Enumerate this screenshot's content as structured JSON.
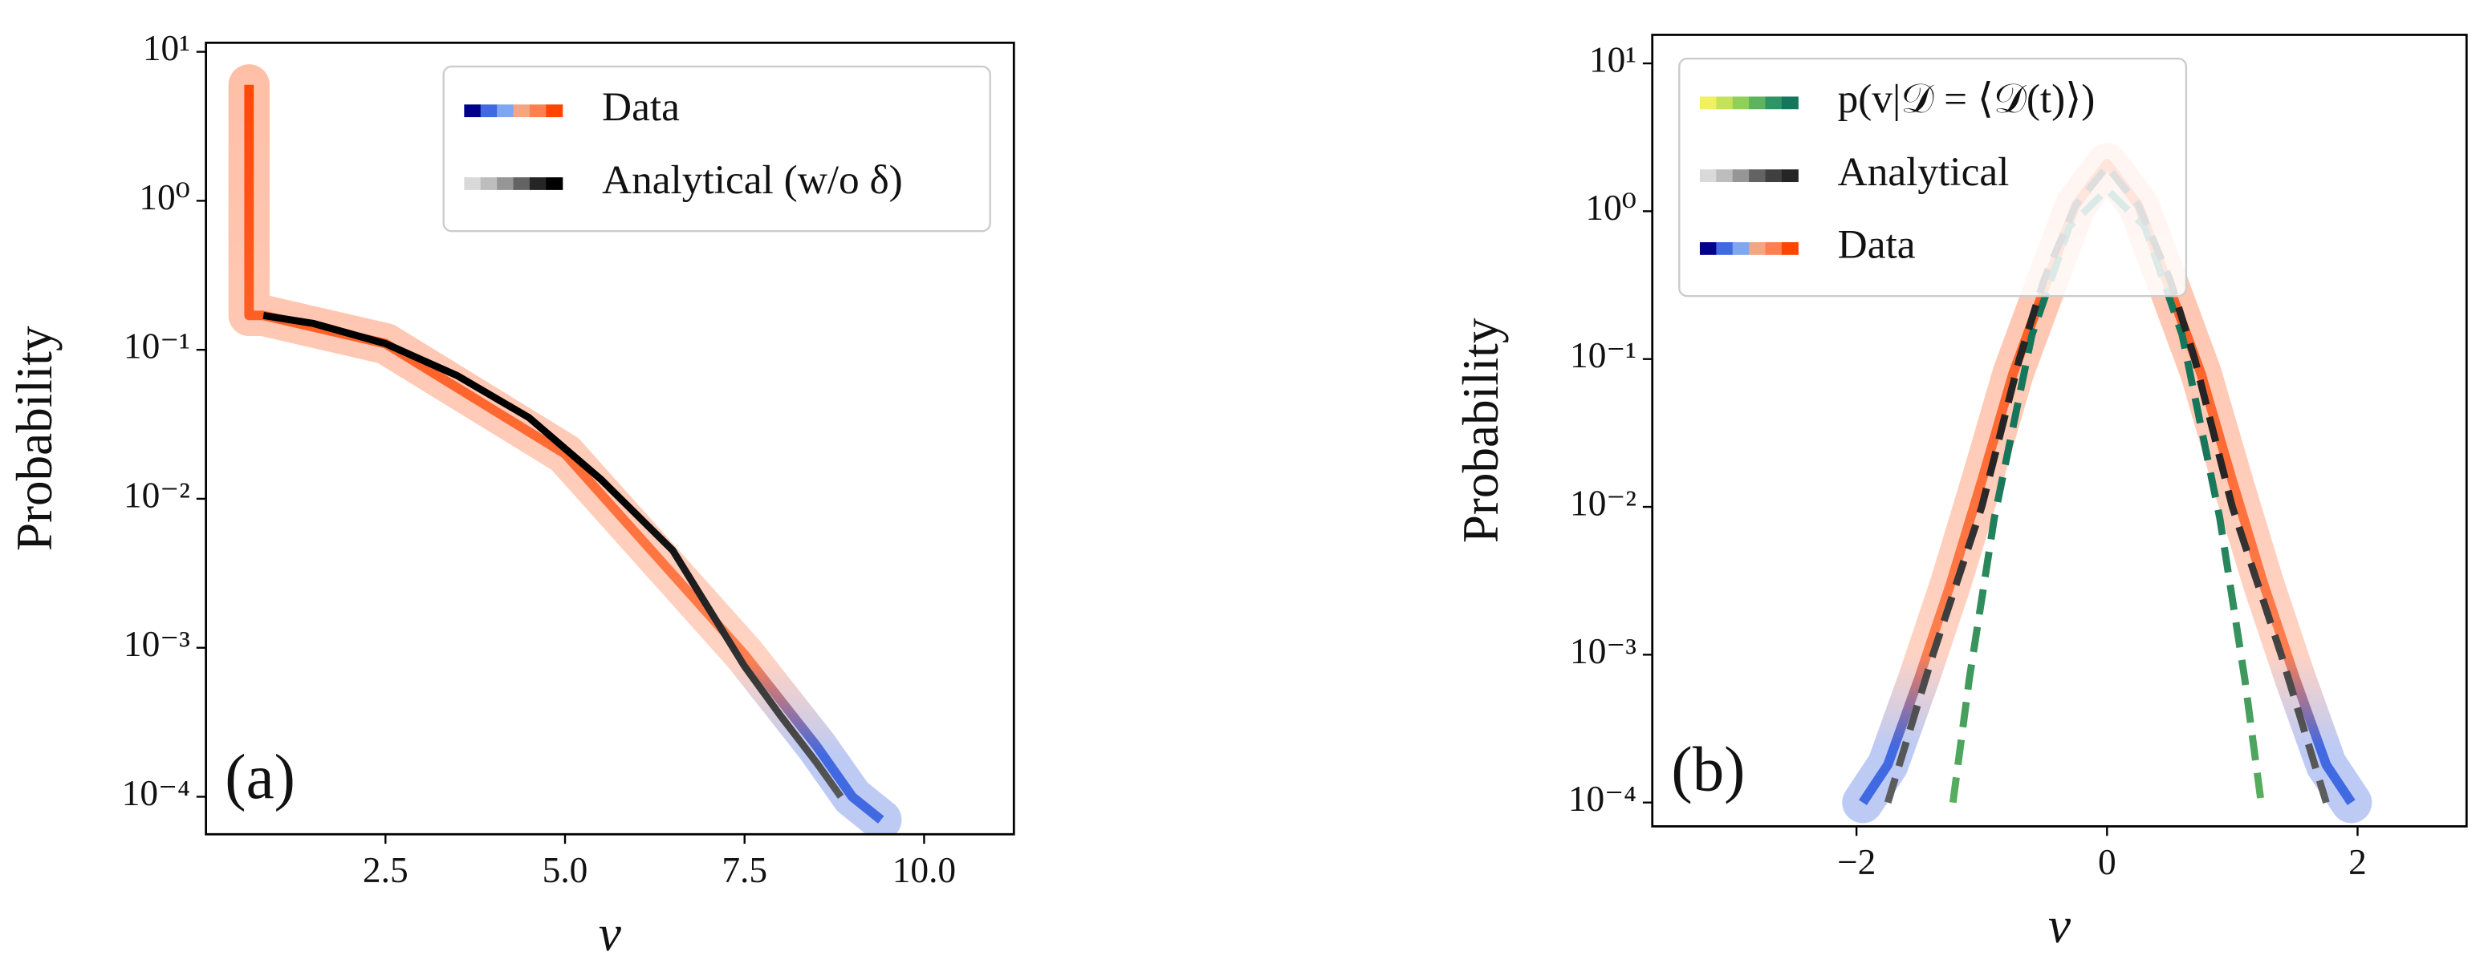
{
  "chart_data": [
    {
      "type": "line",
      "xlabel": "v",
      "ylabel": "Probability",
      "annotation": "(a)",
      "yscale": "log",
      "legend": "upper right",
      "xlim": [
        0.0,
        11.25
      ],
      "ylim": [
        5.6e-05,
        11.5
      ],
      "xticks": [
        2.5,
        {
          "value": 5,
          "label": "5.0"
        },
        7.5,
        {
          "value": 10,
          "label": "10.0"
        }
      ],
      "yticks": [
        {
          "value": 0.0001,
          "label": "10⁻⁴"
        },
        {
          "value": 0.001,
          "label": "10⁻³"
        },
        {
          "value": 0.01,
          "label": "10⁻²"
        },
        {
          "value": 0.1,
          "label": "10⁻¹"
        },
        {
          "value": 1,
          "label": "10⁰"
        },
        {
          "value": 10,
          "label": "10¹"
        }
      ],
      "series": [
        {
          "name": "Data",
          "band": true,
          "colors": [
            "#00008b",
            "#4169e1",
            "#7fa6f0",
            "#f4a582",
            "#ff7f50",
            "#ff4500"
          ],
          "x": [
            0.6,
            0.6,
            0.8,
            2.5,
            5.0,
            7.5,
            8.5,
            9.0,
            9.4
          ],
          "values": [
            6,
            0.17,
            0.17,
            0.11,
            0.02,
            0.0009,
            0.00022,
            0.0001,
            7e-05
          ]
        },
        {
          "name": "Analytical (w/o δ)",
          "colors": [
            "#d9d9d9",
            "#bdbdbd",
            "#969696",
            "#636363",
            "#252525",
            "#000000"
          ],
          "x": [
            0.8,
            1.5,
            2.5,
            3.5,
            4.5,
            5.5,
            6.5,
            7.5,
            8.0,
            8.5,
            8.84
          ],
          "values": [
            0.17,
            0.15,
            0.11,
            0.067,
            0.035,
            0.0135,
            0.0045,
            0.00075,
            0.00035,
            0.00017,
            0.0001
          ]
        }
      ]
    },
    {
      "type": "line",
      "xlabel": "v",
      "ylabel": "Probability",
      "annotation": "(b)",
      "yscale": "log",
      "legend": "upper left",
      "xlim": [
        -3.63,
        2.87
      ],
      "ylim": [
        6.9e-05,
        15.6
      ],
      "xticks": [
        {
          "value": -2,
          "label": "−2"
        },
        0,
        2
      ],
      "yticks": [
        {
          "value": 0.0001,
          "label": "10⁻⁴"
        },
        {
          "value": 0.001,
          "label": "10⁻³"
        },
        {
          "value": 0.01,
          "label": "10⁻²"
        },
        {
          "value": 0.1,
          "label": "10⁻¹"
        },
        {
          "value": 1,
          "label": "10⁰"
        },
        {
          "value": 10,
          "label": "10¹"
        }
      ],
      "series": [
        {
          "name": "p(v|𝒟 = ⟨𝒟(t)⟩)",
          "dashed": true,
          "colors": [
            "#f0f060",
            "#c5e35a",
            "#8fcf5a",
            "#5db35e",
            "#2e9466",
            "#16765c"
          ],
          "x": [
            -1.23,
            -1.1,
            -0.9,
            -0.6,
            -0.3,
            0,
            0.3,
            0.6,
            0.9,
            1.1,
            1.23
          ],
          "values": [
            0.0001,
            0.00068,
            0.0084,
            0.145,
            0.79,
            1.4,
            0.79,
            0.145,
            0.0084,
            0.00068,
            0.0001
          ]
        },
        {
          "name": "Analytical",
          "dashed": true,
          "colors": [
            "#d9d9d9",
            "#bdbdbd",
            "#969696",
            "#636363",
            "#404040",
            "#252525"
          ],
          "x": [
            -1.75,
            -1.39,
            -1.0,
            -0.7,
            -0.5,
            -0.25,
            0,
            0.25,
            0.5,
            0.7,
            1.0,
            1.39,
            1.75
          ],
          "values": [
            0.0001,
            0.001,
            0.01,
            0.1,
            0.35,
            1.1,
            2.0,
            1.1,
            0.35,
            0.1,
            0.01,
            0.001,
            0.0001
          ]
        },
        {
          "name": "Data",
          "band": true,
          "colors": [
            "#00008b",
            "#4169e1",
            "#7fa6f0",
            "#f4a582",
            "#ff7f50",
            "#ff4500"
          ],
          "x": [
            -1.95,
            -1.75,
            -1.5,
            -1.25,
            -1.0,
            -0.75,
            -0.5,
            -0.25,
            0,
            0.25,
            0.5,
            0.75,
            1.0,
            1.25,
            1.5,
            1.75,
            1.95
          ],
          "values": [
            0.0001,
            0.00018,
            0.0007,
            0.003,
            0.015,
            0.08,
            0.3,
            1.1,
            2.1,
            1.1,
            0.3,
            0.08,
            0.015,
            0.003,
            0.0007,
            0.00018,
            0.0001
          ]
        }
      ]
    }
  ]
}
